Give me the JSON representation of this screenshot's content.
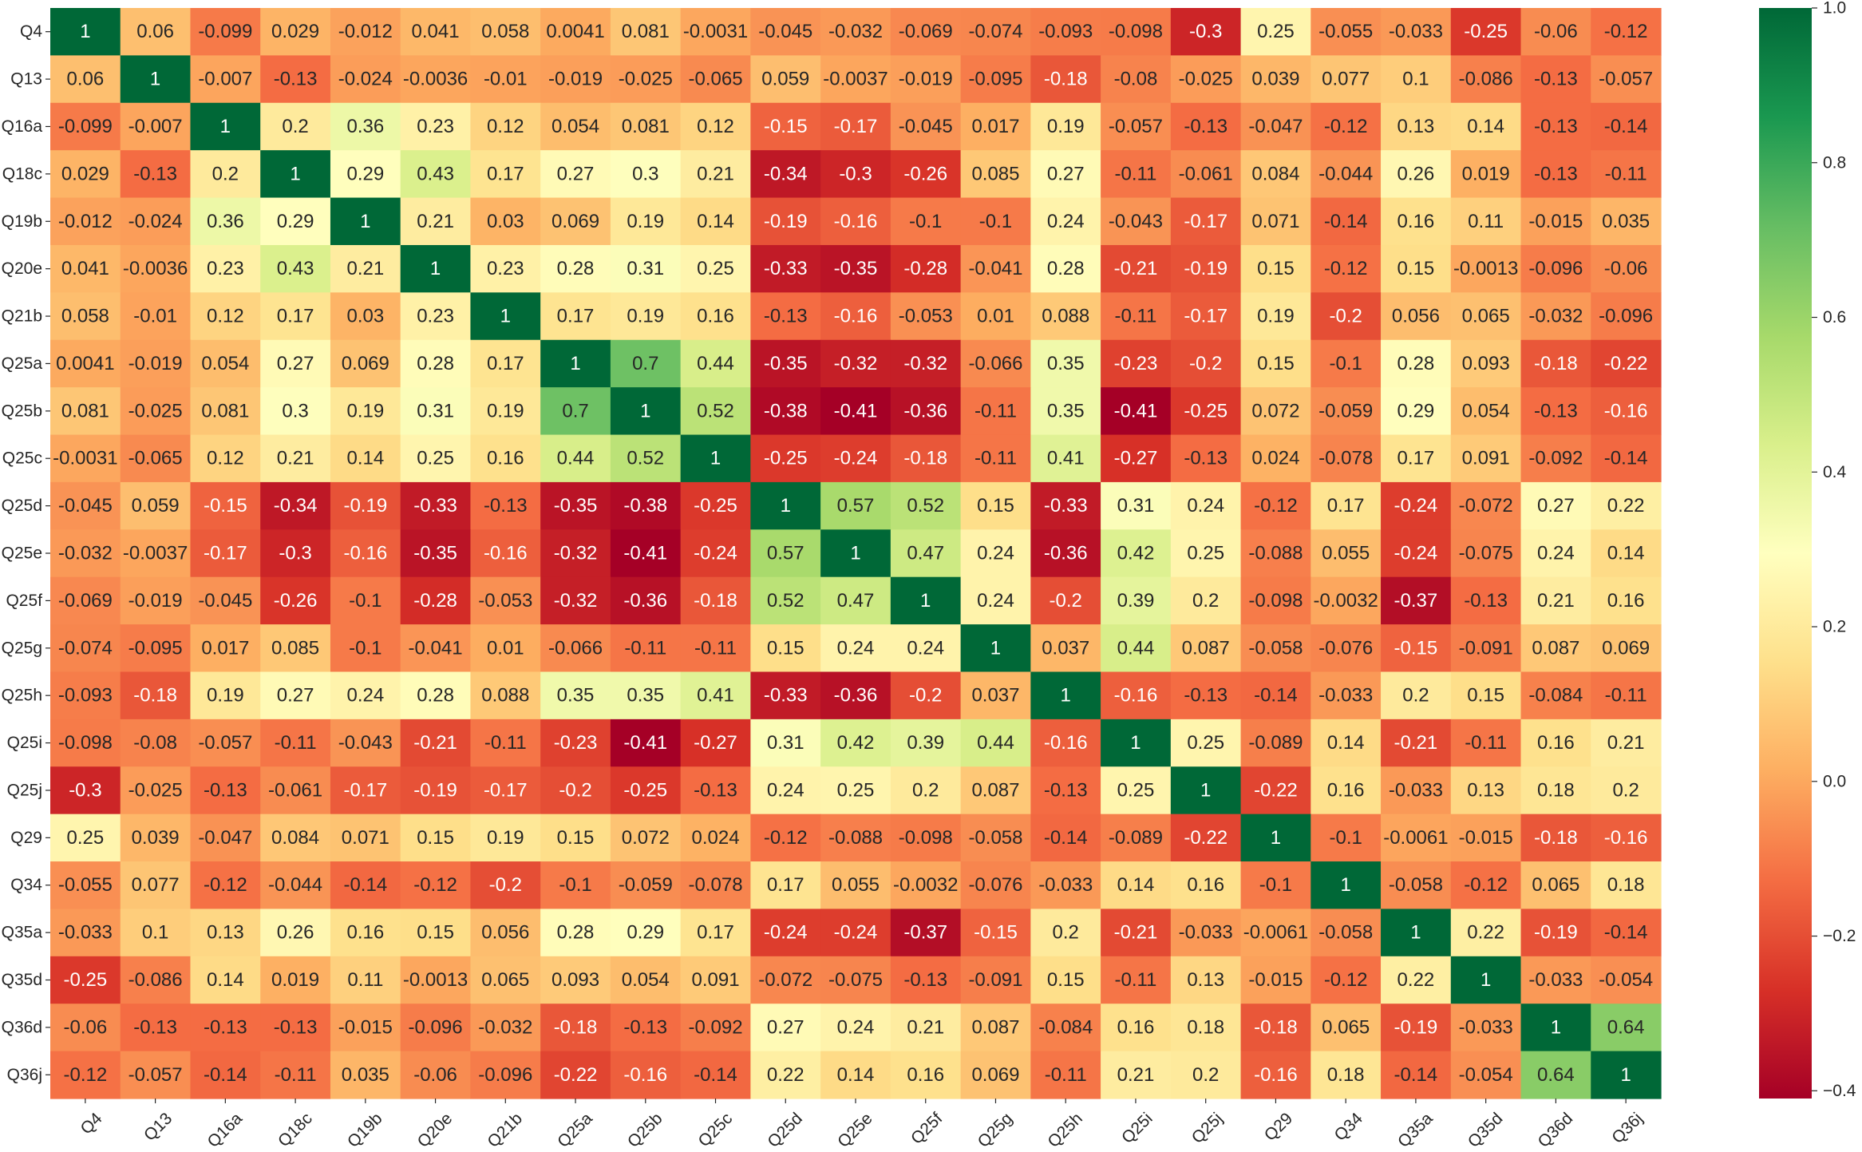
{
  "chart_data": {
    "type": "heatmap",
    "title": "",
    "xlabel": "",
    "ylabel": "",
    "labels": [
      "Q4",
      "Q13",
      "Q16a",
      "Q18c",
      "Q19b",
      "Q20e",
      "Q21b",
      "Q25a",
      "Q25b",
      "Q25c",
      "Q25d",
      "Q25e",
      "Q25f",
      "Q25g",
      "Q25h",
      "Q25i",
      "Q25j",
      "Q29",
      "Q34",
      "Q35a",
      "Q35d",
      "Q36d",
      "Q36j"
    ],
    "values": [
      [
        1,
        0.06,
        -0.099,
        0.029,
        -0.012,
        0.041,
        0.058,
        0.0041,
        0.081,
        -0.0031,
        -0.045,
        -0.032,
        -0.069,
        -0.074,
        -0.093,
        -0.098,
        -0.3,
        0.25,
        -0.055,
        -0.033,
        -0.25,
        -0.06,
        -0.12
      ],
      [
        0.06,
        1,
        -0.007,
        -0.13,
        -0.024,
        -0.0036,
        -0.01,
        -0.019,
        -0.025,
        -0.065,
        0.059,
        -0.0037,
        -0.019,
        -0.095,
        -0.18,
        -0.08,
        -0.025,
        0.039,
        0.077,
        0.1,
        -0.086,
        -0.13,
        -0.057
      ],
      [
        -0.099,
        -0.007,
        1,
        0.2,
        0.36,
        0.23,
        0.12,
        0.054,
        0.081,
        0.12,
        -0.15,
        -0.17,
        -0.045,
        0.017,
        0.19,
        -0.057,
        -0.13,
        -0.047,
        -0.12,
        0.13,
        0.14,
        -0.13,
        -0.14
      ],
      [
        0.029,
        -0.13,
        0.2,
        1,
        0.29,
        0.43,
        0.17,
        0.27,
        0.3,
        0.21,
        -0.34,
        -0.3,
        -0.26,
        0.085,
        0.27,
        -0.11,
        -0.061,
        0.084,
        -0.044,
        0.26,
        0.019,
        -0.13,
        -0.11
      ],
      [
        -0.012,
        -0.024,
        0.36,
        0.29,
        1,
        0.21,
        0.03,
        0.069,
        0.19,
        0.14,
        -0.19,
        -0.16,
        -0.1,
        -0.1,
        0.24,
        -0.043,
        -0.17,
        0.071,
        -0.14,
        0.16,
        0.11,
        -0.015,
        0.035
      ],
      [
        0.041,
        -0.0036,
        0.23,
        0.43,
        0.21,
        1,
        0.23,
        0.28,
        0.31,
        0.25,
        -0.33,
        -0.35,
        -0.28,
        -0.041,
        0.28,
        -0.21,
        -0.19,
        0.15,
        -0.12,
        0.15,
        -0.0013,
        -0.096,
        -0.06
      ],
      [
        0.058,
        -0.01,
        0.12,
        0.17,
        0.03,
        0.23,
        1,
        0.17,
        0.19,
        0.16,
        -0.13,
        -0.16,
        -0.053,
        0.01,
        0.088,
        -0.11,
        -0.17,
        0.19,
        -0.2,
        0.056,
        0.065,
        -0.032,
        -0.096
      ],
      [
        0.0041,
        -0.019,
        0.054,
        0.27,
        0.069,
        0.28,
        0.17,
        1,
        0.7,
        0.44,
        -0.35,
        -0.32,
        -0.32,
        -0.066,
        0.35,
        -0.23,
        -0.2,
        0.15,
        -0.1,
        0.28,
        0.093,
        -0.18,
        -0.22
      ],
      [
        0.081,
        -0.025,
        0.081,
        0.3,
        0.19,
        0.31,
        0.19,
        0.7,
        1,
        0.52,
        -0.38,
        -0.41,
        -0.36,
        -0.11,
        0.35,
        -0.41,
        -0.25,
        0.072,
        -0.059,
        0.29,
        0.054,
        -0.13,
        -0.16
      ],
      [
        -0.0031,
        -0.065,
        0.12,
        0.21,
        0.14,
        0.25,
        0.16,
        0.44,
        0.52,
        1,
        -0.25,
        -0.24,
        -0.18,
        -0.11,
        0.41,
        -0.27,
        -0.13,
        0.024,
        -0.078,
        0.17,
        0.091,
        -0.092,
        -0.14
      ],
      [
        -0.045,
        0.059,
        -0.15,
        -0.34,
        -0.19,
        -0.33,
        -0.13,
        -0.35,
        -0.38,
        -0.25,
        1,
        0.57,
        0.52,
        0.15,
        -0.33,
        0.31,
        0.24,
        -0.12,
        0.17,
        -0.24,
        -0.072,
        0.27,
        0.22
      ],
      [
        -0.032,
        -0.0037,
        -0.17,
        -0.3,
        -0.16,
        -0.35,
        -0.16,
        -0.32,
        -0.41,
        -0.24,
        0.57,
        1,
        0.47,
        0.24,
        -0.36,
        0.42,
        0.25,
        -0.088,
        0.055,
        -0.24,
        -0.075,
        0.24,
        0.14
      ],
      [
        -0.069,
        -0.019,
        -0.045,
        -0.26,
        -0.1,
        -0.28,
        -0.053,
        -0.32,
        -0.36,
        -0.18,
        0.52,
        0.47,
        1,
        0.24,
        -0.2,
        0.39,
        0.2,
        -0.098,
        -0.0032,
        -0.37,
        -0.13,
        0.21,
        0.16
      ],
      [
        -0.074,
        -0.095,
        0.017,
        0.085,
        -0.1,
        -0.041,
        0.01,
        -0.066,
        -0.11,
        -0.11,
        0.15,
        0.24,
        0.24,
        1,
        0.037,
        0.44,
        0.087,
        -0.058,
        -0.076,
        -0.15,
        -0.091,
        0.087,
        0.069
      ],
      [
        -0.093,
        -0.18,
        0.19,
        0.27,
        0.24,
        0.28,
        0.088,
        0.35,
        0.35,
        0.41,
        -0.33,
        -0.36,
        -0.2,
        0.037,
        1,
        -0.16,
        -0.13,
        -0.14,
        -0.033,
        0.2,
        0.15,
        -0.084,
        -0.11
      ],
      [
        -0.098,
        -0.08,
        -0.057,
        -0.11,
        -0.043,
        -0.21,
        -0.11,
        -0.23,
        -0.41,
        -0.27,
        0.31,
        0.42,
        0.39,
        0.44,
        -0.16,
        1,
        0.25,
        -0.089,
        0.14,
        -0.21,
        -0.11,
        0.16,
        0.21
      ],
      [
        -0.3,
        -0.025,
        -0.13,
        -0.061,
        -0.17,
        -0.19,
        -0.17,
        -0.2,
        -0.25,
        -0.13,
        0.24,
        0.25,
        0.2,
        0.087,
        -0.13,
        0.25,
        1,
        -0.22,
        0.16,
        -0.033,
        0.13,
        0.18,
        0.2
      ],
      [
        0.25,
        0.039,
        -0.047,
        0.084,
        0.071,
        0.15,
        0.19,
        0.15,
        0.072,
        0.024,
        -0.12,
        -0.088,
        -0.098,
        -0.058,
        -0.14,
        -0.089,
        -0.22,
        1,
        -0.1,
        -0.0061,
        -0.015,
        -0.18,
        -0.16
      ],
      [
        -0.055,
        0.077,
        -0.12,
        -0.044,
        -0.14,
        -0.12,
        -0.2,
        -0.1,
        -0.059,
        -0.078,
        0.17,
        0.055,
        -0.0032,
        -0.076,
        -0.033,
        0.14,
        0.16,
        -0.1,
        1,
        -0.058,
        -0.12,
        0.065,
        0.18
      ],
      [
        -0.033,
        0.1,
        0.13,
        0.26,
        0.16,
        0.15,
        0.056,
        0.28,
        0.29,
        0.17,
        -0.24,
        -0.24,
        -0.37,
        -0.15,
        0.2,
        -0.21,
        -0.033,
        -0.0061,
        -0.058,
        1,
        0.22,
        -0.19,
        -0.14
      ],
      [
        -0.25,
        -0.086,
        0.14,
        0.019,
        0.11,
        -0.0013,
        0.065,
        0.093,
        0.054,
        0.091,
        -0.072,
        -0.075,
        -0.13,
        -0.091,
        0.15,
        -0.11,
        0.13,
        -0.015,
        -0.12,
        0.22,
        1,
        -0.033,
        -0.054
      ],
      [
        -0.06,
        -0.13,
        -0.13,
        -0.13,
        -0.015,
        -0.096,
        -0.032,
        -0.18,
        -0.13,
        -0.092,
        0.27,
        0.24,
        0.21,
        0.087,
        -0.084,
        0.16,
        0.18,
        -0.18,
        0.065,
        -0.19,
        -0.033,
        1,
        0.64
      ],
      [
        -0.12,
        -0.057,
        -0.14,
        -0.11,
        0.035,
        -0.06,
        -0.096,
        -0.22,
        -0.16,
        -0.14,
        0.22,
        0.14,
        0.16,
        0.069,
        -0.11,
        0.21,
        0.2,
        -0.16,
        0.18,
        -0.14,
        -0.054,
        0.64,
        1
      ]
    ],
    "colormap": "RdYlGn",
    "vmin": -0.41,
    "vmax": 1.0,
    "colorbar_ticks": [
      "1.0",
      "0.8",
      "0.6",
      "0.4",
      "0.2",
      "0.0",
      "−0.2",
      "−0.4"
    ],
    "colorbar_tick_values": [
      1.0,
      0.8,
      0.6,
      0.4,
      0.2,
      0.0,
      -0.2,
      -0.4
    ],
    "annotations": true,
    "grid": false,
    "legend": "colorbar-right"
  }
}
